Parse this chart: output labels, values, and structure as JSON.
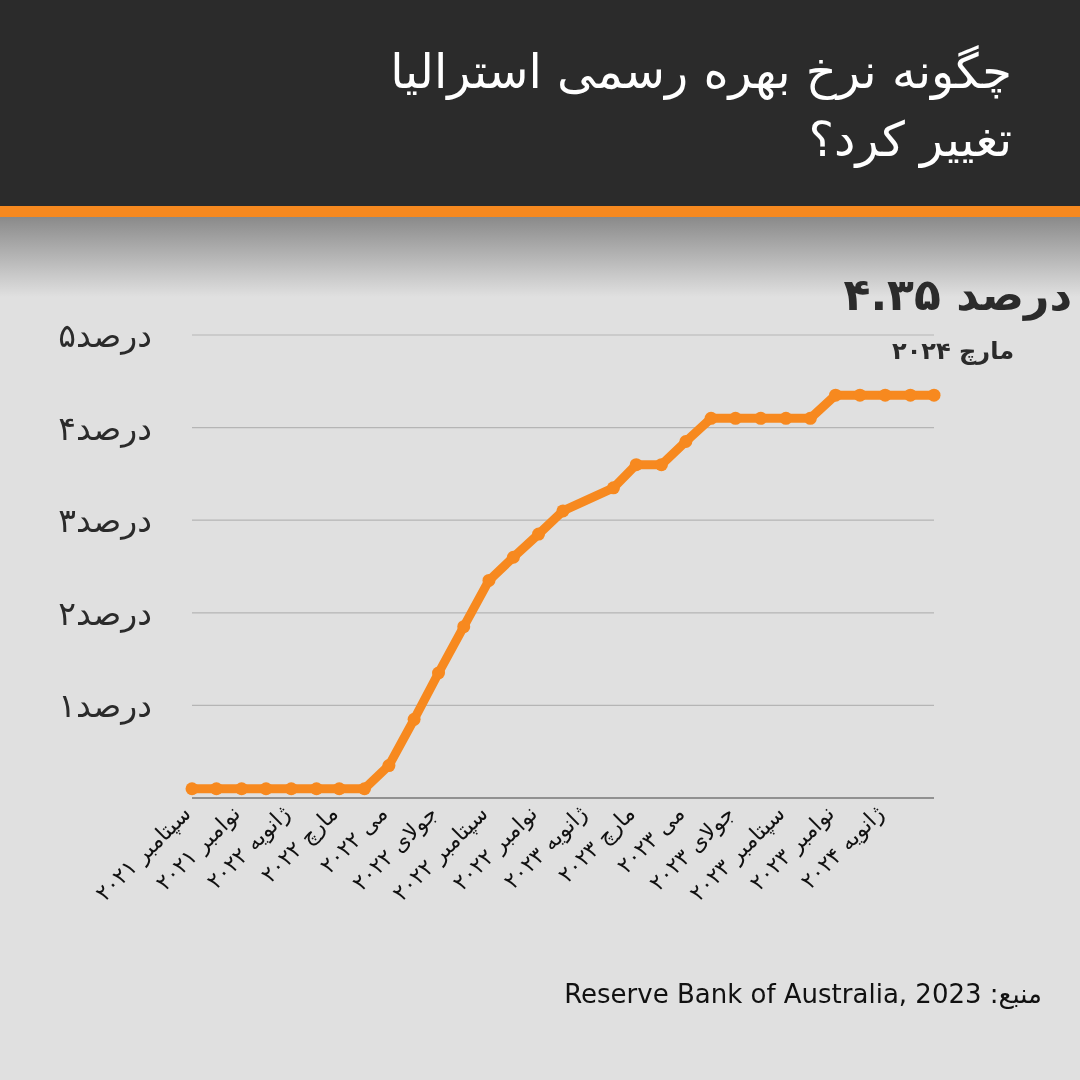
{
  "chart_data": {
    "type": "line",
    "title": "چگونه نرخ بهره رسمی استرالیا تغییر کرد؟",
    "x": [
      "2021-09",
      "2021-10",
      "2021-11",
      "2021-12",
      "2022-01",
      "2022-02",
      "2022-03",
      "2022-04",
      "2022-05",
      "2022-06",
      "2022-07",
      "2022-08",
      "2022-09",
      "2022-10",
      "2022-11",
      "2022-12",
      "2023-02",
      "2023-03",
      "2023-04",
      "2023-05",
      "2023-06",
      "2023-07",
      "2023-08",
      "2023-09",
      "2023-10",
      "2023-11",
      "2023-12",
      "2024-01",
      "2024-02",
      "2024-03"
    ],
    "series": [
      {
        "color": "#f7891f",
        "values": [
          0.1,
          0.1,
          0.1,
          0.1,
          0.1,
          0.1,
          0.1,
          0.1,
          0.35,
          0.85,
          1.35,
          1.85,
          2.35,
          2.6,
          2.85,
          3.1,
          3.35,
          3.6,
          3.6,
          3.85,
          4.1,
          4.1,
          4.1,
          4.1,
          4.1,
          4.35,
          4.35,
          4.35,
          4.35,
          4.35
        ]
      }
    ],
    "xlim": [
      "2021-09",
      "2024-03"
    ],
    "xticks": [
      {
        "value": "2021-09",
        "label": "سپتامبر ۲۰۲۱"
      },
      {
        "value": "2021-11",
        "label": "نوامبر ۲۰۲۱"
      },
      {
        "value": "2022-01",
        "label": "ژانویه ۲۰۲۲"
      },
      {
        "value": "2022-03",
        "label": "مارچ ۲۰۲۲"
      },
      {
        "value": "2022-05",
        "label": "می ۲۰۲۲"
      },
      {
        "value": "2022-07",
        "label": "جولای ۲۰۲۲"
      },
      {
        "value": "2022-09",
        "label": "سپتامبر ۲۰۲۲"
      },
      {
        "value": "2022-11",
        "label": "نوامبر ۲۰۲۲"
      },
      {
        "value": "2023-01",
        "label": "ژانویه ۲۰۲۳"
      },
      {
        "value": "2023-03",
        "label": "مارچ ۲۰۲۳"
      },
      {
        "value": "2023-05",
        "label": "می ۲۰۲۳"
      },
      {
        "value": "2023-07",
        "label": "جولای ۲۰۲۳"
      },
      {
        "value": "2023-09",
        "label": "سپتامبر ۲۰۲۳"
      },
      {
        "value": "2023-11",
        "label": "نوامبر ۲۰۲۳"
      },
      {
        "value": "2024-01",
        "label": "ژانویه ۲۰۲۴"
      }
    ],
    "ylim": [
      0,
      5
    ],
    "yticks": [
      {
        "value": 1,
        "label": "۱درصد"
      },
      {
        "value": 2,
        "label": "۲درصد"
      },
      {
        "value": 3,
        "label": "۳درصد"
      },
      {
        "value": 4,
        "label": "۴درصد"
      },
      {
        "value": 5,
        "label": "۵درصد"
      }
    ],
    "grid": "y",
    "marker": "circle",
    "line_style": "solid",
    "annotations": [
      {
        "text": "۴.۳۵ درصد",
        "x": "2024-03",
        "y": 4.35
      },
      "مارچ ۲۰۲۴",
      "منبع: Reserve Bank of Australia, 2023"
    ]
  }
}
